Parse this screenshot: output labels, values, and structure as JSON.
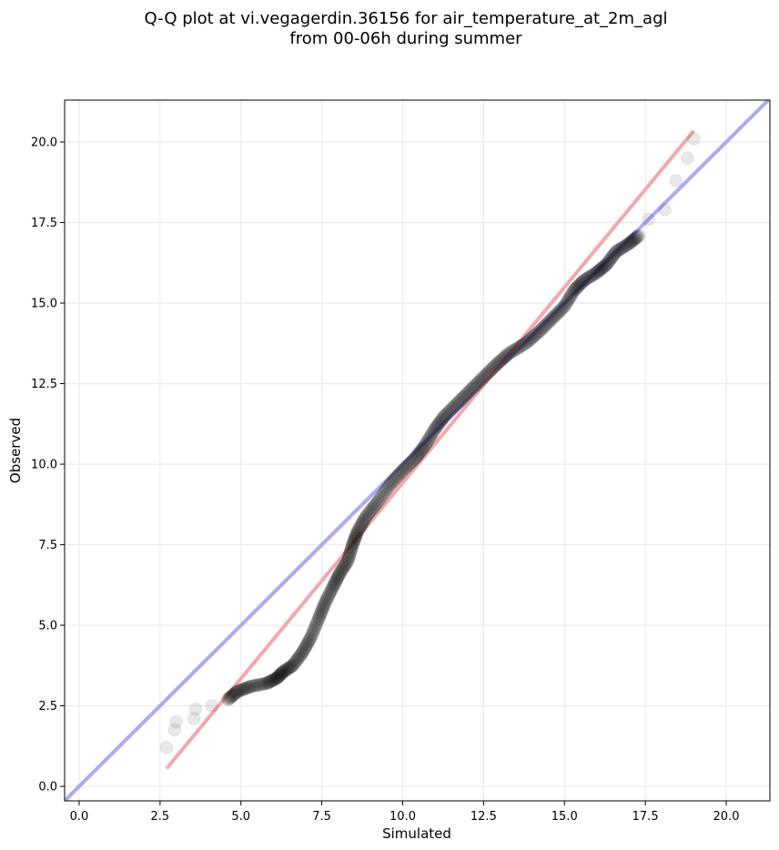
{
  "chart_data": {
    "type": "scatter",
    "title_line1": "Q-Q plot at vi.vegagerdin.36156 for air_temperature_at_2m_agl",
    "title_line2": "from 00-06h during summer",
    "xlabel": "Simulated",
    "ylabel": "Observed",
    "xlim": [
      -0.45,
      21.35
    ],
    "ylim": [
      -0.45,
      21.3
    ],
    "xticks": [
      0.0,
      2.5,
      5.0,
      7.5,
      10.0,
      12.5,
      15.0,
      17.5,
      20.0
    ],
    "xtick_labels": [
      "0.0",
      "2.5",
      "5.0",
      "7.5",
      "10.0",
      "12.5",
      "15.0",
      "17.5",
      "20.0"
    ],
    "yticks": [
      0.0,
      2.5,
      5.0,
      7.5,
      10.0,
      12.5,
      15.0,
      17.5,
      20.0
    ],
    "ytick_labels": [
      "0.0",
      "2.5",
      "5.0",
      "7.5",
      "10.0",
      "12.5",
      "15.0",
      "17.5",
      "20.0"
    ],
    "grid": true,
    "identity_line": {
      "color": "#aaaaf5",
      "x": [
        -0.45,
        21.35
      ],
      "y": [
        -0.45,
        21.35
      ]
    },
    "fit_line": {
      "color": "#f5a8a8",
      "x": [
        2.7,
        19.0
      ],
      "y": [
        0.55,
        20.35
      ]
    },
    "quantile_curve": [
      [
        2.7,
        1.2
      ],
      [
        2.95,
        1.75
      ],
      [
        3.0,
        2.0
      ],
      [
        3.55,
        2.1
      ],
      [
        3.6,
        2.4
      ],
      [
        4.1,
        2.5
      ],
      [
        4.6,
        2.7
      ],
      [
        4.9,
        2.95
      ],
      [
        5.3,
        3.1
      ],
      [
        5.8,
        3.2
      ],
      [
        6.1,
        3.35
      ],
      [
        6.3,
        3.55
      ],
      [
        6.6,
        3.75
      ],
      [
        6.9,
        4.15
      ],
      [
        7.15,
        4.6
      ],
      [
        7.4,
        5.2
      ],
      [
        7.6,
        5.7
      ],
      [
        7.85,
        6.2
      ],
      [
        8.05,
        6.6
      ],
      [
        8.3,
        7.0
      ],
      [
        8.45,
        7.5
      ],
      [
        8.6,
        7.9
      ],
      [
        8.85,
        8.35
      ],
      [
        9.2,
        8.8
      ],
      [
        9.6,
        9.35
      ],
      [
        10.0,
        9.8
      ],
      [
        10.4,
        10.2
      ],
      [
        10.7,
        10.6
      ],
      [
        11.0,
        11.1
      ],
      [
        11.3,
        11.5
      ],
      [
        11.7,
        11.9
      ],
      [
        12.1,
        12.3
      ],
      [
        12.5,
        12.7
      ],
      [
        12.9,
        13.1
      ],
      [
        13.3,
        13.45
      ],
      [
        13.8,
        13.75
      ],
      [
        14.2,
        14.1
      ],
      [
        14.6,
        14.5
      ],
      [
        15.0,
        14.9
      ],
      [
        15.3,
        15.4
      ],
      [
        15.6,
        15.7
      ],
      [
        16.0,
        15.95
      ],
      [
        16.3,
        16.2
      ],
      [
        16.6,
        16.6
      ],
      [
        17.0,
        16.85
      ],
      [
        17.3,
        17.1
      ],
      [
        17.6,
        17.6
      ],
      [
        18.1,
        17.9
      ],
      [
        18.45,
        18.8
      ],
      [
        18.8,
        19.5
      ],
      [
        19.0,
        20.1
      ]
    ]
  }
}
